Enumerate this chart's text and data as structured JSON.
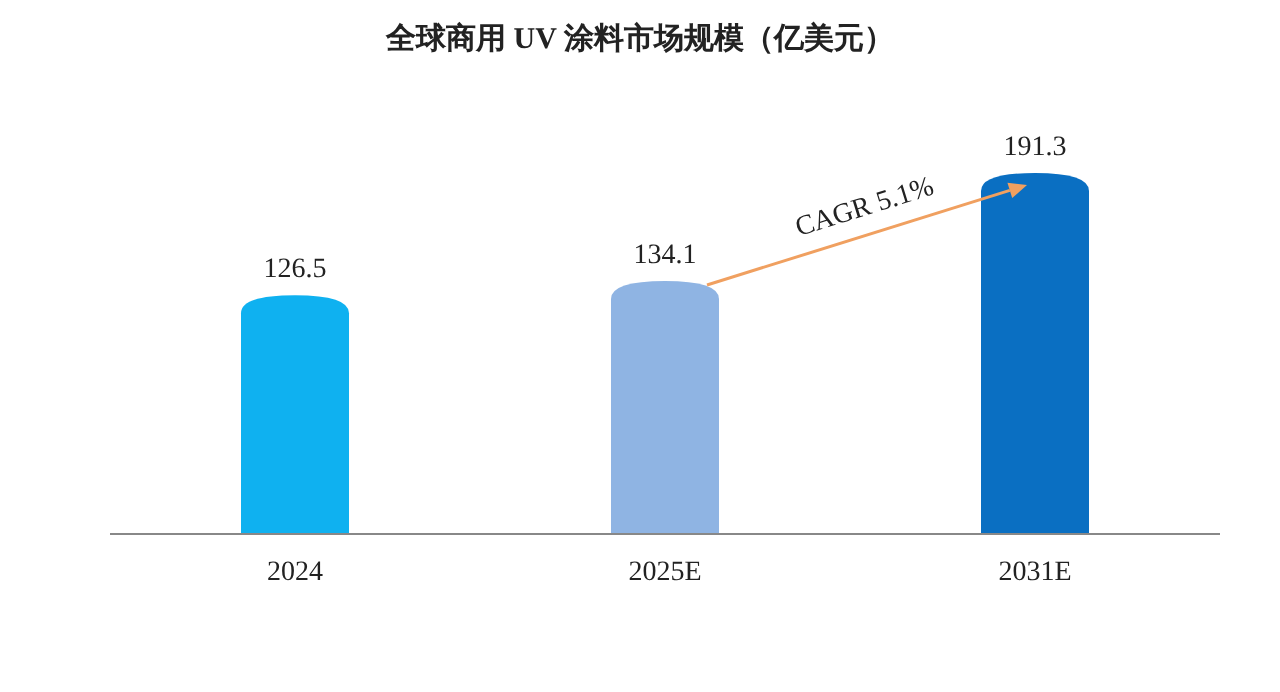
{
  "chart_data": {
    "type": "bar",
    "title": "全球商用 UV 涂料市场规模（亿美元）",
    "categories": [
      "2024",
      "2025E",
      "2031E"
    ],
    "values": [
      126.5,
      134.1,
      191.3
    ],
    "colors": [
      "#0fb1f0",
      "#8fb4e3",
      "#0a6fc2"
    ],
    "data_labels": true,
    "annotations": [
      "CAGR 5.1%"
    ]
  }
}
